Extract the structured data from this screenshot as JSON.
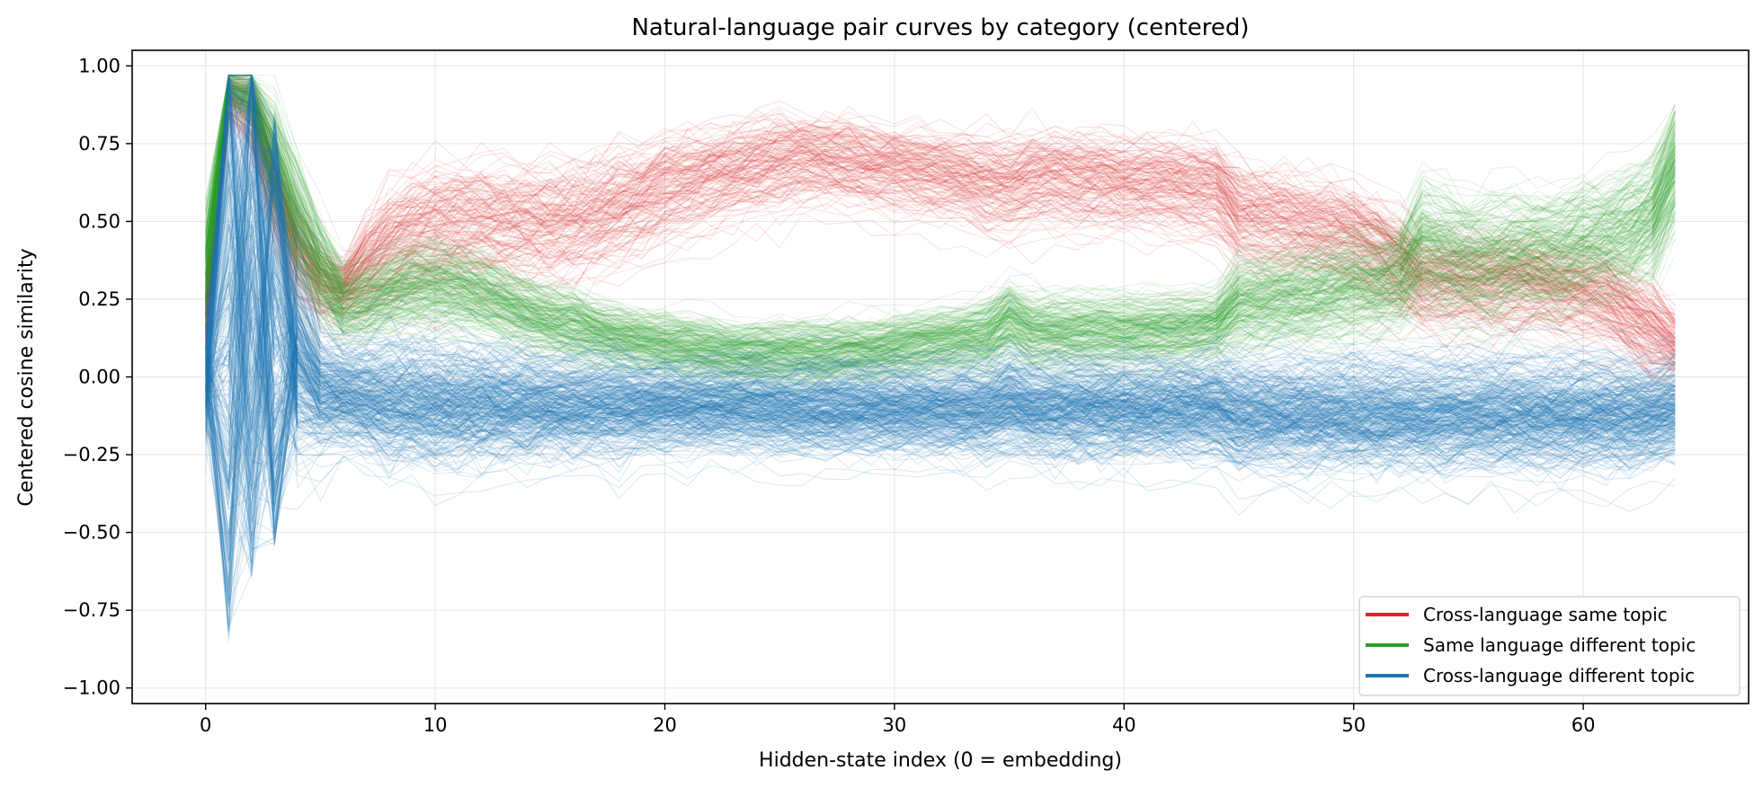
{
  "chart_data": {
    "type": "line",
    "title": "Natural-language pair curves by category (centered)",
    "xlabel": "Hidden-state index (0 = embedding)",
    "ylabel": "Centered cosine similarity",
    "xlim": [
      -3.2,
      67.2
    ],
    "ylim": [
      -1.05,
      1.05
    ],
    "xticks": [
      0,
      10,
      20,
      30,
      40,
      50,
      60
    ],
    "xtick_labels": [
      "0",
      "10",
      "20",
      "30",
      "40",
      "50",
      "60"
    ],
    "yticks": [
      1.0,
      0.75,
      0.5,
      0.25,
      0.0,
      -0.25,
      -0.5,
      -0.75,
      -1.0
    ],
    "ytick_labels": [
      "1.00",
      "0.75",
      "0.50",
      "0.25",
      "0.00",
      "−0.25",
      "−0.50",
      "−0.75",
      "−1.00"
    ],
    "grid": true,
    "legend_position": "lower-right",
    "x": [
      0,
      1,
      2,
      3,
      4,
      5,
      6,
      7,
      8,
      9,
      10,
      11,
      12,
      13,
      14,
      15,
      16,
      17,
      18,
      19,
      20,
      21,
      22,
      23,
      24,
      25,
      26,
      27,
      28,
      29,
      30,
      31,
      32,
      33,
      34,
      35,
      36,
      37,
      38,
      39,
      40,
      41,
      42,
      43,
      44,
      45,
      46,
      47,
      48,
      49,
      50,
      51,
      52,
      53,
      54,
      55,
      56,
      57,
      58,
      59,
      60,
      61,
      62,
      63,
      64
    ],
    "series": [
      {
        "name": "Cross-language same topic",
        "color": "#d62728",
        "curves_drawn": 160,
        "mean": [
          0.2,
          0.9,
          0.85,
          0.6,
          0.4,
          0.3,
          0.28,
          0.35,
          0.42,
          0.46,
          0.48,
          0.49,
          0.49,
          0.49,
          0.49,
          0.49,
          0.5,
          0.52,
          0.55,
          0.57,
          0.6,
          0.62,
          0.64,
          0.66,
          0.68,
          0.69,
          0.7,
          0.7,
          0.69,
          0.68,
          0.67,
          0.66,
          0.65,
          0.64,
          0.62,
          0.61,
          0.64,
          0.64,
          0.63,
          0.63,
          0.62,
          0.62,
          0.62,
          0.61,
          0.6,
          0.52,
          0.5,
          0.5,
          0.48,
          0.47,
          0.45,
          0.42,
          0.36,
          0.3,
          0.3,
          0.3,
          0.3,
          0.3,
          0.3,
          0.28,
          0.27,
          0.25,
          0.2,
          0.15,
          0.1
        ],
        "spread": [
          0.08,
          0.05,
          0.08,
          0.1,
          0.1,
          0.08,
          0.06,
          0.1,
          0.12,
          0.12,
          0.13,
          0.13,
          0.13,
          0.12,
          0.12,
          0.12,
          0.12,
          0.12,
          0.12,
          0.11,
          0.11,
          0.11,
          0.1,
          0.1,
          0.1,
          0.1,
          0.09,
          0.09,
          0.09,
          0.09,
          0.09,
          0.09,
          0.09,
          0.09,
          0.1,
          0.1,
          0.1,
          0.1,
          0.1,
          0.1,
          0.1,
          0.1,
          0.1,
          0.1,
          0.1,
          0.11,
          0.11,
          0.11,
          0.11,
          0.11,
          0.11,
          0.11,
          0.11,
          0.1,
          0.1,
          0.1,
          0.1,
          0.1,
          0.1,
          0.1,
          0.1,
          0.1,
          0.1,
          0.1,
          0.08
        ]
      },
      {
        "name": "Same language different topic",
        "color": "#2ca02c",
        "curves_drawn": 220,
        "mean": [
          0.35,
          0.93,
          0.9,
          0.7,
          0.5,
          0.35,
          0.24,
          0.25,
          0.28,
          0.3,
          0.3,
          0.29,
          0.27,
          0.24,
          0.21,
          0.19,
          0.17,
          0.15,
          0.13,
          0.12,
          0.11,
          0.1,
          0.09,
          0.08,
          0.08,
          0.08,
          0.08,
          0.08,
          0.09,
          0.09,
          0.1,
          0.11,
          0.12,
          0.13,
          0.14,
          0.19,
          0.15,
          0.15,
          0.15,
          0.15,
          0.15,
          0.15,
          0.16,
          0.16,
          0.17,
          0.24,
          0.25,
          0.26,
          0.27,
          0.28,
          0.3,
          0.3,
          0.33,
          0.43,
          0.4,
          0.38,
          0.38,
          0.4,
          0.4,
          0.4,
          0.43,
          0.45,
          0.48,
          0.52,
          0.68
        ],
        "spread": [
          0.12,
          0.04,
          0.05,
          0.12,
          0.12,
          0.1,
          0.08,
          0.08,
          0.08,
          0.08,
          0.08,
          0.08,
          0.08,
          0.07,
          0.07,
          0.07,
          0.07,
          0.06,
          0.06,
          0.06,
          0.06,
          0.06,
          0.06,
          0.06,
          0.06,
          0.06,
          0.06,
          0.06,
          0.06,
          0.06,
          0.06,
          0.06,
          0.06,
          0.06,
          0.07,
          0.07,
          0.07,
          0.07,
          0.07,
          0.07,
          0.07,
          0.07,
          0.07,
          0.07,
          0.07,
          0.09,
          0.09,
          0.09,
          0.1,
          0.1,
          0.1,
          0.1,
          0.1,
          0.12,
          0.12,
          0.12,
          0.12,
          0.12,
          0.12,
          0.12,
          0.12,
          0.12,
          0.12,
          0.12,
          0.12
        ]
      },
      {
        "name": "Cross-language different topic",
        "color": "#1f77b4",
        "curves_drawn": 320,
        "mean": [
          0.0,
          0.2,
          0.3,
          0.15,
          0.05,
          -0.05,
          -0.06,
          -0.07,
          -0.08,
          -0.08,
          -0.09,
          -0.09,
          -0.09,
          -0.09,
          -0.09,
          -0.09,
          -0.09,
          -0.09,
          -0.09,
          -0.09,
          -0.09,
          -0.09,
          -0.09,
          -0.09,
          -0.09,
          -0.1,
          -0.1,
          -0.1,
          -0.1,
          -0.1,
          -0.1,
          -0.1,
          -0.1,
          -0.1,
          -0.1,
          -0.08,
          -0.1,
          -0.1,
          -0.1,
          -0.1,
          -0.1,
          -0.1,
          -0.1,
          -0.1,
          -0.1,
          -0.12,
          -0.12,
          -0.12,
          -0.12,
          -0.12,
          -0.12,
          -0.12,
          -0.12,
          -0.12,
          -0.12,
          -0.12,
          -0.12,
          -0.12,
          -0.12,
          -0.12,
          -0.12,
          -0.12,
          -0.12,
          -0.12,
          -0.1
        ],
        "spread": [
          0.12,
          0.6,
          0.5,
          0.3,
          0.2,
          0.12,
          0.1,
          0.11,
          0.12,
          0.12,
          0.12,
          0.12,
          0.11,
          0.11,
          0.11,
          0.1,
          0.1,
          0.1,
          0.1,
          0.09,
          0.09,
          0.09,
          0.09,
          0.09,
          0.09,
          0.09,
          0.09,
          0.09,
          0.09,
          0.09,
          0.09,
          0.09,
          0.09,
          0.1,
          0.1,
          0.1,
          0.1,
          0.1,
          0.1,
          0.1,
          0.1,
          0.1,
          0.1,
          0.1,
          0.1,
          0.11,
          0.11,
          0.11,
          0.11,
          0.11,
          0.11,
          0.11,
          0.11,
          0.11,
          0.11,
          0.11,
          0.11,
          0.11,
          0.11,
          0.11,
          0.11,
          0.11,
          0.11,
          0.1,
          0.1
        ]
      }
    ]
  }
}
